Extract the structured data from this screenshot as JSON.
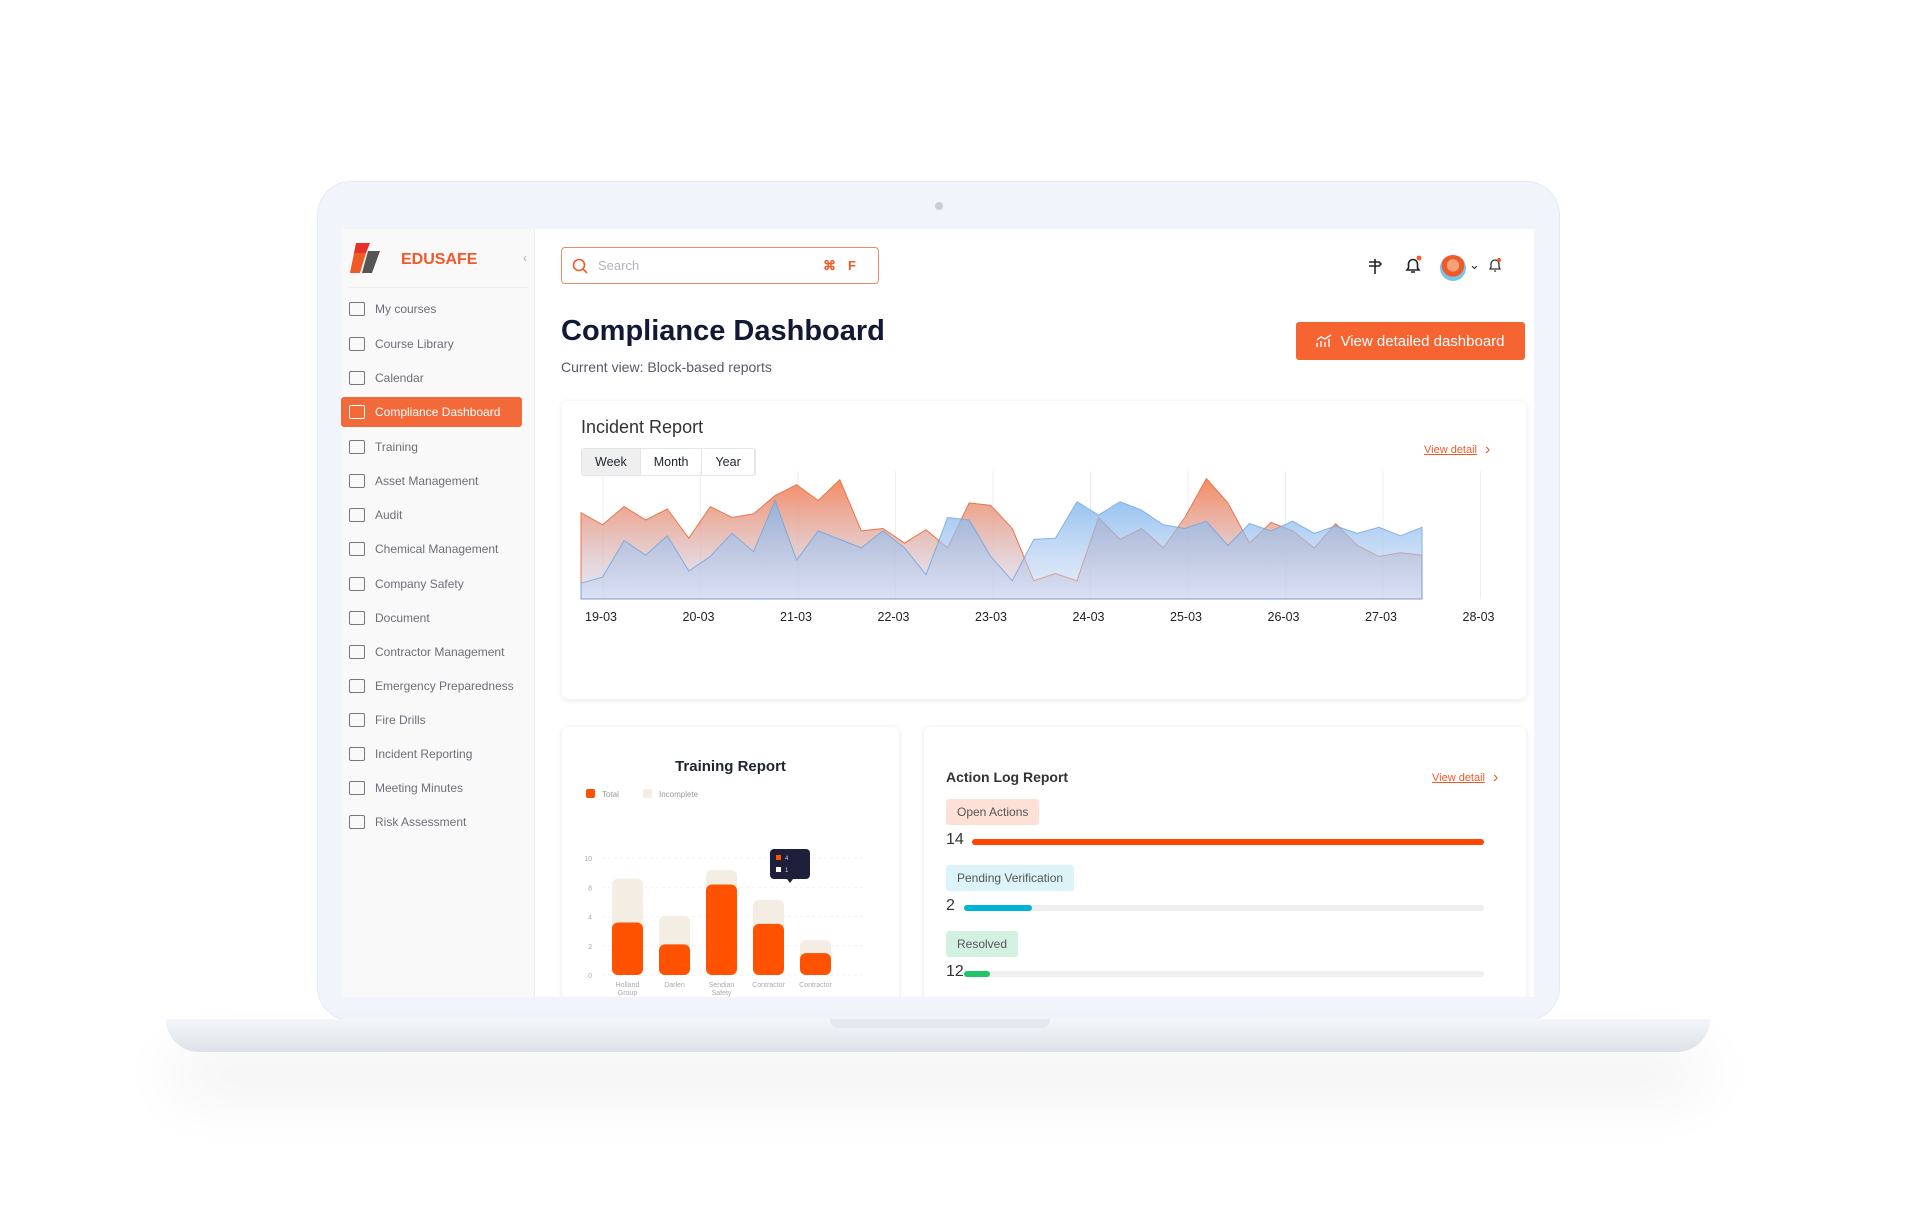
{
  "brand": {
    "name": "EDUSAFE",
    "accent": "#f05a28"
  },
  "sidebar": {
    "items": [
      {
        "label": "My courses",
        "icon": "graduation-cap-icon"
      },
      {
        "label": "Course Library",
        "icon": "folder-icon"
      },
      {
        "label": "Calendar",
        "icon": "calendar-icon"
      },
      {
        "label": "Compliance Dashboard",
        "icon": "calendar-icon",
        "active": true
      },
      {
        "label": "Training",
        "icon": "chat-icon"
      },
      {
        "label": "Asset Management",
        "icon": "folder-icon"
      },
      {
        "label": "Audit",
        "icon": "note-icon"
      },
      {
        "label": "Chemical Management",
        "icon": "download-box-icon"
      },
      {
        "label": "Company Safety",
        "icon": "people-icon"
      },
      {
        "label": "Document",
        "icon": "document-icon"
      },
      {
        "label": "Contractor Management",
        "icon": "factory-icon"
      },
      {
        "label": "Emergency Preparedness",
        "icon": "gear-icon"
      },
      {
        "label": "Fire Drills",
        "icon": "extinguisher-icon"
      },
      {
        "label": "Incident Reporting",
        "icon": "forklift-icon"
      },
      {
        "label": "Meeting Minutes",
        "icon": "edit-icon"
      },
      {
        "label": "Risk Assessment",
        "icon": "barrier-icon"
      }
    ]
  },
  "header": {
    "search_placeholder": "Search",
    "shortcut": "⌘F"
  },
  "page": {
    "title": "Compliance Dashboard",
    "subtitle": "Current view: Block-based reports",
    "cta": "View detailed dashboard"
  },
  "chart_data": [
    {
      "type": "area",
      "title": "Incident Report",
      "view_detail": "View detail",
      "tabs": [
        "Week",
        "Month",
        "Year"
      ],
      "active_tab": "Week",
      "x_ticks": [
        "19-03",
        "20-03",
        "21-03",
        "22-03",
        "23-03",
        "24-03",
        "25-03",
        "26-03",
        "27-03",
        "28-03"
      ],
      "grid": "vertical",
      "series": [
        {
          "color": "#f5845a",
          "values": [
            7.1,
            6.1,
            7.6,
            6.5,
            7.4,
            5.0,
            7.6,
            6.7,
            7.0,
            8.5,
            9.4,
            8.1,
            9.8,
            5.6,
            5.8,
            4.6,
            5.7,
            4.2,
            7.9,
            7.7,
            5.8,
            1.5,
            2.1,
            1.5,
            6.7,
            4.9,
            5.8,
            4.2,
            6.7,
            9.9,
            7.9,
            4.6,
            6.3,
            5.6,
            4.2,
            6.2,
            4.4,
            3.5,
            3.8,
            3.6
          ]
        },
        {
          "color": "#7fb6ee",
          "values": [
            1.3,
            1.8,
            4.8,
            3.6,
            5.2,
            2.3,
            3.5,
            5.4,
            3.9,
            8.1,
            3.2,
            5.6,
            4.9,
            4.2,
            5.6,
            4.2,
            2.0,
            6.7,
            6.5,
            3.5,
            1.5,
            4.9,
            5.0,
            8.0,
            6.9,
            8.0,
            7.3,
            6.1,
            5.8,
            6.4,
            4.4,
            6.2,
            5.6,
            6.4,
            5.4,
            6.0,
            5.4,
            5.9,
            5.2,
            5.9
          ]
        }
      ]
    },
    {
      "type": "bar",
      "stacked": true,
      "title": "Training Report",
      "legend": [
        {
          "name": "Total",
          "color": "#ff5200"
        },
        {
          "name": "Incomplete",
          "color": "#f3ede4"
        }
      ],
      "y_ticks": [
        "0",
        "2",
        "4",
        "8",
        "10"
      ],
      "categories": [
        "Holland Group",
        "Darlen",
        "Sendian Safety",
        "Contractor",
        "Contractor"
      ],
      "series": [
        {
          "name": "Total",
          "values": [
            3.6,
            2.1,
            8.2,
            3.5,
            1.5
          ]
        },
        {
          "name": "Incomplete",
          "values": [
            5.0,
            2.0,
            1.0,
            2.8,
            0.9
          ]
        }
      ],
      "tooltip": {
        "category": "Contractor",
        "total": "4",
        "incomplete": "1"
      }
    }
  ],
  "action_log": {
    "title": "Action Log Report",
    "view_detail": "View detail",
    "items": [
      {
        "label": "Open Actions",
        "count": "14",
        "progress": 1.0,
        "color": "#ff4500",
        "bg": "#fde0d6"
      },
      {
        "label": "Pending Verification",
        "count": "2",
        "progress": 0.13,
        "color": "#00b4d8",
        "bg": "#dcf4f8"
      },
      {
        "label": "Resolved",
        "count": "12",
        "progress": 0.05,
        "color": "#22c46a",
        "bg": "#d3f1e0"
      }
    ]
  }
}
